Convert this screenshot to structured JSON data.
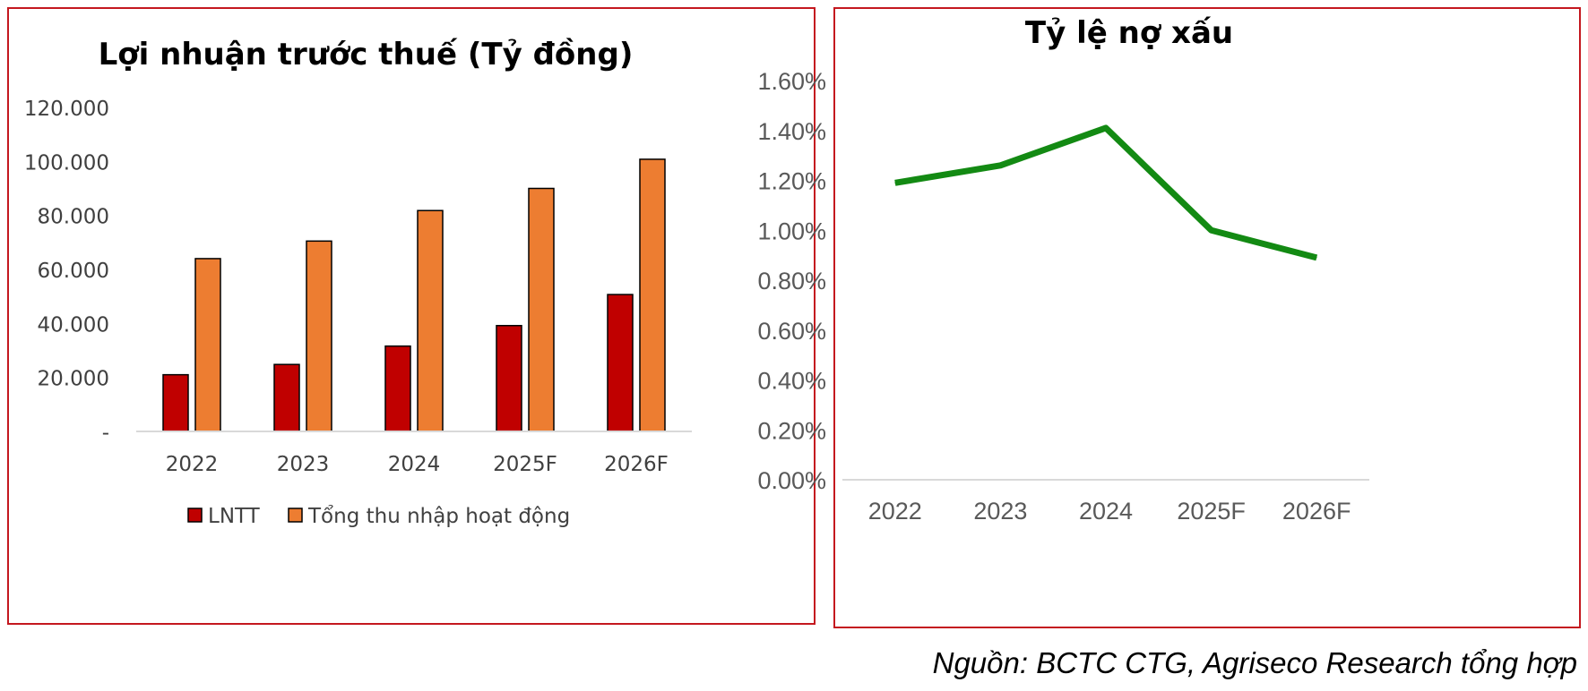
{
  "chart_data": [
    {
      "type": "bar",
      "title": "Lợi nhuận trước thuế (Tỷ đồng)",
      "categories": [
        "2022",
        "2023",
        "2024",
        "2025F",
        "2026F"
      ],
      "series": [
        {
          "name": "LNTT",
          "color": "#c00000",
          "values": [
            21000,
            24800,
            31600,
            39200,
            50700
          ]
        },
        {
          "name": "Tổng thu nhập hoạt động",
          "color": "#ed7d31",
          "values": [
            64000,
            70500,
            81800,
            90000,
            100800
          ]
        }
      ],
      "ylim": [
        0,
        120000
      ],
      "yticks": [
        0,
        20000,
        40000,
        60000,
        80000,
        100000,
        120000
      ],
      "ytick_labels": [
        "-",
        "20.000",
        "40.000",
        "60.000",
        "80.000",
        "100.000",
        "120.000"
      ],
      "legend": "bottom",
      "xlabel": "",
      "ylabel": "",
      "grid": false
    },
    {
      "type": "line",
      "title": "Tỷ lệ nợ xấu",
      "categories": [
        "2022",
        "2023",
        "2024",
        "2025F",
        "2026F"
      ],
      "series": [
        {
          "name": "Tỷ lệ nợ xấu",
          "color": "#138a13",
          "values": [
            1.19,
            1.26,
            1.41,
            1.0,
            0.89
          ]
        }
      ],
      "ylim": [
        0,
        1.6
      ],
      "yticks": [
        0,
        0.2,
        0.4,
        0.6,
        0.8,
        1.0,
        1.2,
        1.4,
        1.6
      ],
      "ytick_labels": [
        "0.00%",
        "0.20%",
        "0.40%",
        "0.60%",
        "0.80%",
        "1.00%",
        "1.20%",
        "1.40%",
        "1.60%"
      ],
      "legend": "none",
      "xlabel": "",
      "ylabel": "",
      "grid": false
    }
  ],
  "source": "Nguồn: BCTC CTG, Agriseco Research tổng hợp"
}
